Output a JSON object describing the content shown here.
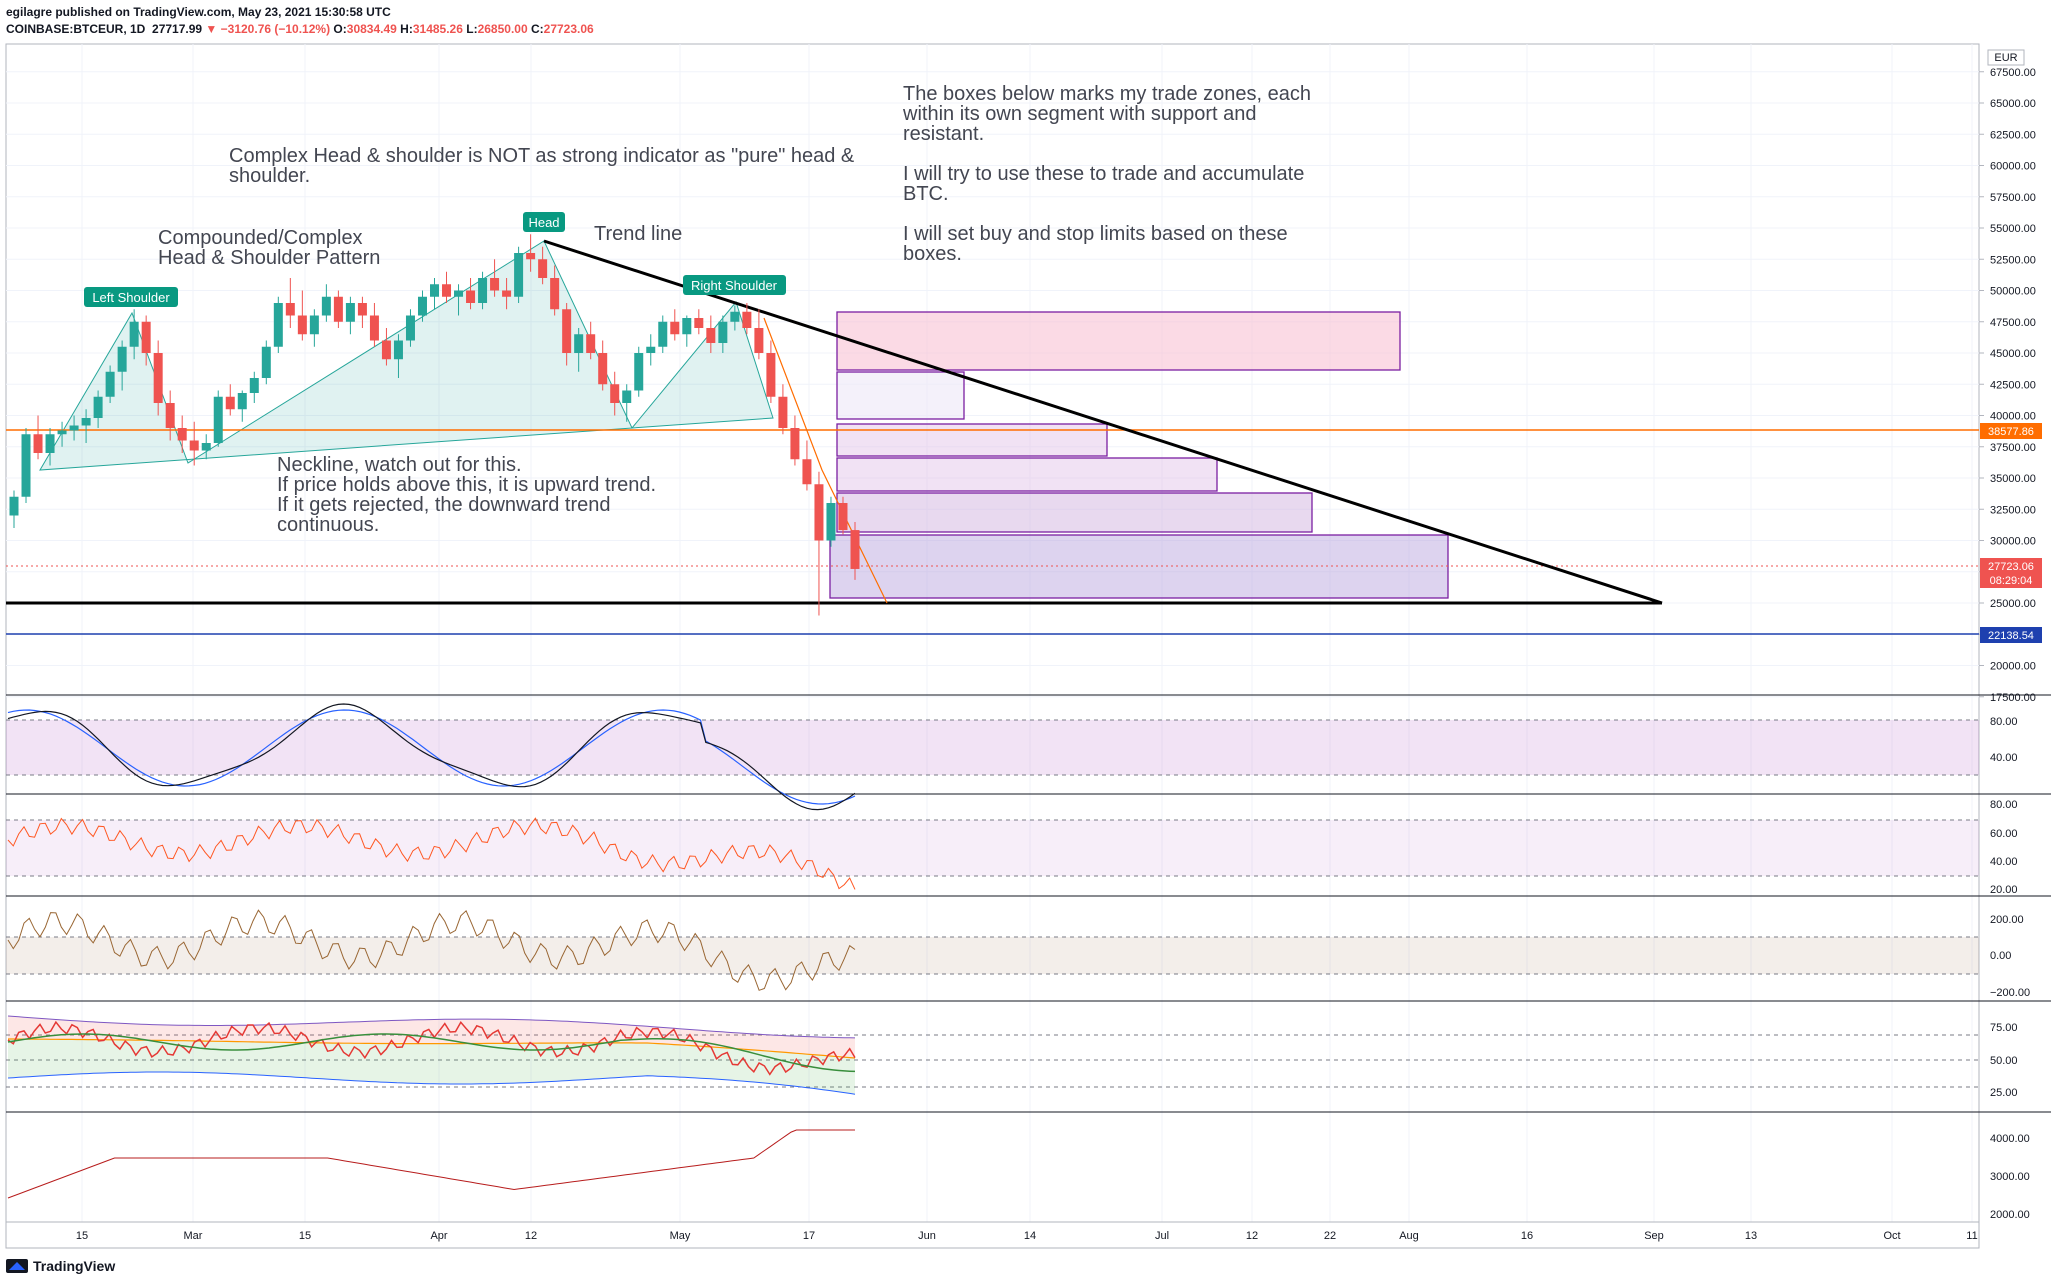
{
  "header": {
    "published": "egilagre published on TradingView.com, May 23, 2021 15:30:58 UTC",
    "symbol": "COINBASE:BTCEUR, 1D",
    "last": "27717.99",
    "change": "−3120.76 (−10.12%)",
    "o_label": "O:",
    "o": "30834.49",
    "h_label": "H:",
    "h": "31485.26",
    "l_label": "L:",
    "l": "26850.00",
    "c_label": "C:",
    "c": "27723.06"
  },
  "annotations": {
    "complex_note": [
      "Complex Head & shoulder is NOT as strong indicator as \"pure\" head &",
      "shoulder."
    ],
    "pattern_title": [
      "Compounded/Complex",
      "Head & Shoulder Pattern"
    ],
    "trend_line": "Trend line",
    "boxes_note": [
      "The boxes below marks my trade zones, each",
      "within its own segment with support and",
      "resistant.",
      "",
      "I will try to use these to trade and accumulate",
      "BTC.",
      "",
      "I will set buy and stop limits based on these",
      "boxes."
    ],
    "neckline_note": [
      "Neckline, watch out for this.",
      "If price holds above this, it is upward trend.",
      "If it gets rejected, the downward trend",
      "continuous."
    ],
    "left_shoulder": "Left Shoulder",
    "head": "Head",
    "right_shoulder": "Right Shoulder"
  },
  "price_axis": {
    "currency": "EUR",
    "ticks": [
      "67500.00",
      "65000.00",
      "62500.00",
      "60000.00",
      "57500.00",
      "55000.00",
      "52500.00",
      "50000.00",
      "47500.00",
      "45000.00",
      "42500.00",
      "40000.00",
      "37500.00",
      "35000.00",
      "32500.00",
      "30000.00",
      "27500.00",
      "25000.00",
      "22500.00",
      "20000.00",
      "17500.00"
    ],
    "neckline_price": "38577.86",
    "last_price": "27723.06",
    "countdown": "08:29:04",
    "support_price": "22138.54"
  },
  "time_axis": [
    "15",
    "Mar",
    "15",
    "Apr",
    "12",
    "May",
    "17",
    "Jun",
    "14",
    "Jul",
    "12",
    "22",
    "Aug",
    "16",
    "Sep",
    "13",
    "Oct",
    "11"
  ],
  "indicator_axes": {
    "stoch": [
      "80.00",
      "40.00"
    ],
    "rsi": [
      "80.00",
      "60.00",
      "40.00",
      "20.00"
    ],
    "cci": [
      "200.00",
      "0.00",
      "−200.00"
    ],
    "bands": [
      "75.00",
      "50.00",
      "25.00"
    ],
    "obv": [
      "4000.00",
      "3000.00",
      "2000.00"
    ]
  },
  "footer": {
    "brand": "TradingView"
  },
  "colors": {
    "up": "#26a69a",
    "down": "#ef5350",
    "neckline": "#ff6d00",
    "support": "#1e40af",
    "box_border": "#7b1fa2",
    "trend": "#000000"
  },
  "chart_data": {
    "type": "candlestick",
    "series": [
      {
        "name": "COINBASE:BTCEUR, 1D",
        "values": [
          {
            "o": 32000,
            "h": 34000,
            "l": 31000,
            "c": 33500
          },
          {
            "o": 33500,
            "h": 39000,
            "l": 33000,
            "c": 38500
          },
          {
            "o": 38500,
            "h": 40000,
            "l": 36500,
            "c": 37000
          },
          {
            "o": 37000,
            "h": 39000,
            "l": 36000,
            "c": 38500
          },
          {
            "o": 38500,
            "h": 39500,
            "l": 37500,
            "c": 38800
          },
          {
            "o": 38800,
            "h": 40000,
            "l": 38000,
            "c": 39200
          },
          {
            "o": 39200,
            "h": 40500,
            "l": 37800,
            "c": 39800
          },
          {
            "o": 39800,
            "h": 42000,
            "l": 39000,
            "c": 41500
          },
          {
            "o": 41500,
            "h": 44000,
            "l": 41000,
            "c": 43500
          },
          {
            "o": 43500,
            "h": 46000,
            "l": 42000,
            "c": 45500
          },
          {
            "o": 45500,
            "h": 48500,
            "l": 44500,
            "c": 47500
          },
          {
            "o": 47500,
            "h": 48000,
            "l": 44000,
            "c": 45000
          },
          {
            "o": 45000,
            "h": 46000,
            "l": 40000,
            "c": 41000
          },
          {
            "o": 41000,
            "h": 42000,
            "l": 38000,
            "c": 39000
          },
          {
            "o": 39000,
            "h": 40000,
            "l": 37000,
            "c": 38000
          },
          {
            "o": 38000,
            "h": 39500,
            "l": 36000,
            "c": 37200
          },
          {
            "o": 37200,
            "h": 38500,
            "l": 36500,
            "c": 37800
          },
          {
            "o": 37800,
            "h": 42000,
            "l": 37500,
            "c": 41500
          },
          {
            "o": 41500,
            "h": 42500,
            "l": 40000,
            "c": 40500
          },
          {
            "o": 40500,
            "h": 42000,
            "l": 39500,
            "c": 41800
          },
          {
            "o": 41800,
            "h": 43500,
            "l": 41000,
            "c": 43000
          },
          {
            "o": 43000,
            "h": 46000,
            "l": 42500,
            "c": 45500
          },
          {
            "o": 45500,
            "h": 49500,
            "l": 45000,
            "c": 49000
          },
          {
            "o": 49000,
            "h": 51000,
            "l": 47000,
            "c": 48000
          },
          {
            "o": 48000,
            "h": 50000,
            "l": 46000,
            "c": 46500
          },
          {
            "o": 46500,
            "h": 48500,
            "l": 45500,
            "c": 48000
          },
          {
            "o": 48000,
            "h": 50500,
            "l": 47500,
            "c": 49500
          },
          {
            "o": 49500,
            "h": 50000,
            "l": 47000,
            "c": 47500
          },
          {
            "o": 47500,
            "h": 49500,
            "l": 46500,
            "c": 49000
          },
          {
            "o": 49000,
            "h": 49500,
            "l": 47000,
            "c": 48000
          },
          {
            "o": 48000,
            "h": 49000,
            "l": 45500,
            "c": 46000
          },
          {
            "o": 46000,
            "h": 47000,
            "l": 44000,
            "c": 44500
          },
          {
            "o": 44500,
            "h": 46500,
            "l": 43000,
            "c": 46000
          },
          {
            "o": 46000,
            "h": 48500,
            "l": 45500,
            "c": 48000
          },
          {
            "o": 48000,
            "h": 50000,
            "l": 47500,
            "c": 49500
          },
          {
            "o": 49500,
            "h": 51000,
            "l": 48500,
            "c": 50500
          },
          {
            "o": 50500,
            "h": 51500,
            "l": 49000,
            "c": 49500
          },
          {
            "o": 49500,
            "h": 50500,
            "l": 48000,
            "c": 50000
          },
          {
            "o": 50000,
            "h": 51000,
            "l": 48500,
            "c": 49000
          },
          {
            "o": 49000,
            "h": 51500,
            "l": 48500,
            "c": 51000
          },
          {
            "o": 51000,
            "h": 52500,
            "l": 49500,
            "c": 50000
          },
          {
            "o": 50000,
            "h": 51000,
            "l": 48500,
            "c": 49500
          },
          {
            "o": 49500,
            "h": 53500,
            "l": 49000,
            "c": 53000
          },
          {
            "o": 53000,
            "h": 54500,
            "l": 51500,
            "c": 52500
          },
          {
            "o": 52500,
            "h": 53500,
            "l": 50500,
            "c": 51000
          },
          {
            "o": 51000,
            "h": 52000,
            "l": 48000,
            "c": 48500
          },
          {
            "o": 48500,
            "h": 49000,
            "l": 44000,
            "c": 45000
          },
          {
            "o": 45000,
            "h": 47000,
            "l": 43500,
            "c": 46500
          },
          {
            "o": 46500,
            "h": 47500,
            "l": 44500,
            "c": 45000
          },
          {
            "o": 45000,
            "h": 46000,
            "l": 42000,
            "c": 42500
          },
          {
            "o": 42500,
            "h": 43500,
            "l": 40000,
            "c": 41000
          },
          {
            "o": 41000,
            "h": 42500,
            "l": 39500,
            "c": 42000
          },
          {
            "o": 42000,
            "h": 45500,
            "l": 41500,
            "c": 45000
          },
          {
            "o": 45000,
            "h": 46500,
            "l": 44000,
            "c": 45500
          },
          {
            "o": 45500,
            "h": 48000,
            "l": 45000,
            "c": 47500
          },
          {
            "o": 47500,
            "h": 48500,
            "l": 46000,
            "c": 46500
          },
          {
            "o": 46500,
            "h": 48000,
            "l": 45500,
            "c": 47800
          },
          {
            "o": 47800,
            "h": 48500,
            "l": 46500,
            "c": 47000
          },
          {
            "o": 47000,
            "h": 48000,
            "l": 45000,
            "c": 45800
          },
          {
            "o": 45800,
            "h": 48000,
            "l": 45000,
            "c": 47500
          },
          {
            "o": 47500,
            "h": 48800,
            "l": 46800,
            "c": 48300
          },
          {
            "o": 48300,
            "h": 49000,
            "l": 46500,
            "c": 47000
          },
          {
            "o": 47000,
            "h": 48500,
            "l": 44500,
            "c": 45000
          },
          {
            "o": 45000,
            "h": 46000,
            "l": 41000,
            "c": 41500
          },
          {
            "o": 41500,
            "h": 42500,
            "l": 38500,
            "c": 39000
          },
          {
            "o": 39000,
            "h": 40000,
            "l": 36000,
            "c": 36500
          },
          {
            "o": 36500,
            "h": 38000,
            "l": 34000,
            "c": 34500
          },
          {
            "o": 34500,
            "h": 35500,
            "l": 24000,
            "c": 30000
          },
          {
            "o": 30000,
            "h": 33500,
            "l": 29500,
            "c": 33000
          },
          {
            "o": 33000,
            "h": 33500,
            "l": 30500,
            "c": 30834
          },
          {
            "o": 30834,
            "h": 31485,
            "l": 26850,
            "c": 27723
          }
        ]
      }
    ],
    "x": [
      "2021-02-07",
      "2021-05-23"
    ],
    "yrange": [
      17500,
      67500
    ],
    "neckline": 38577.86,
    "support": 22138.54,
    "trade_zones": [
      {
        "from": "2021-05-25",
        "to": "2021-07-30",
        "low": 43500,
        "high": 48000
      },
      {
        "from": "2021-05-25",
        "to": "2021-06-06",
        "low": 39500,
        "high": 43300
      },
      {
        "from": "2021-05-25",
        "to": "2021-06-25",
        "low": 36800,
        "high": 39300
      },
      {
        "from": "2021-05-25",
        "to": "2021-07-09",
        "low": 34200,
        "high": 36600
      },
      {
        "from": "2021-05-25",
        "to": "2021-07-20",
        "low": 30500,
        "high": 33900
      },
      {
        "from": "2021-05-24",
        "to": "2021-08-06",
        "low": 25200,
        "high": 30300
      }
    ]
  }
}
